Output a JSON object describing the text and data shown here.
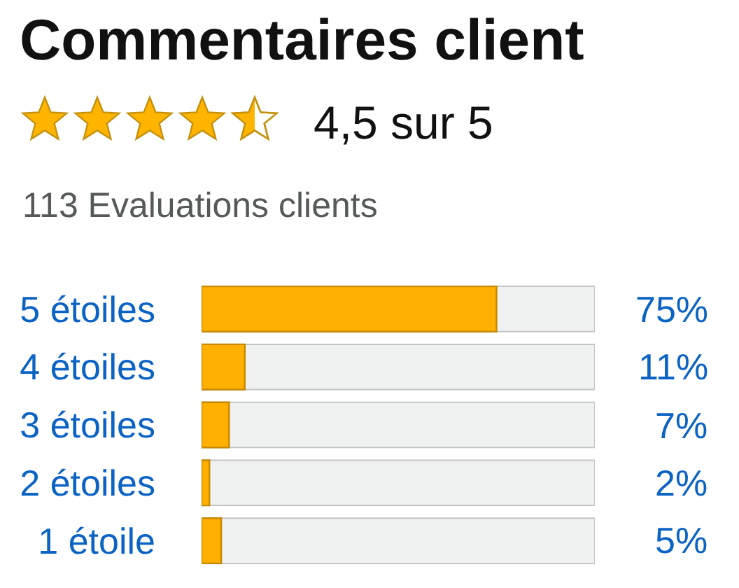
{
  "chart_data": {
    "type": "bar",
    "orientation": "horizontal",
    "title": "Commentaires client",
    "subtitle": "4,5 sur 5",
    "annotations": [
      "113 Evaluations clients"
    ],
    "categories": [
      "5 étoiles",
      "4 étoiles",
      "3 étoiles",
      "2 étoiles",
      "1 étoile"
    ],
    "values": [
      75,
      11,
      7,
      2,
      5
    ],
    "value_labels": [
      "75%",
      "11%",
      "7%",
      "2%",
      "5%"
    ],
    "color": "#ffb000",
    "xlim": [
      0,
      100
    ],
    "tick_labels": "y"
  }
}
